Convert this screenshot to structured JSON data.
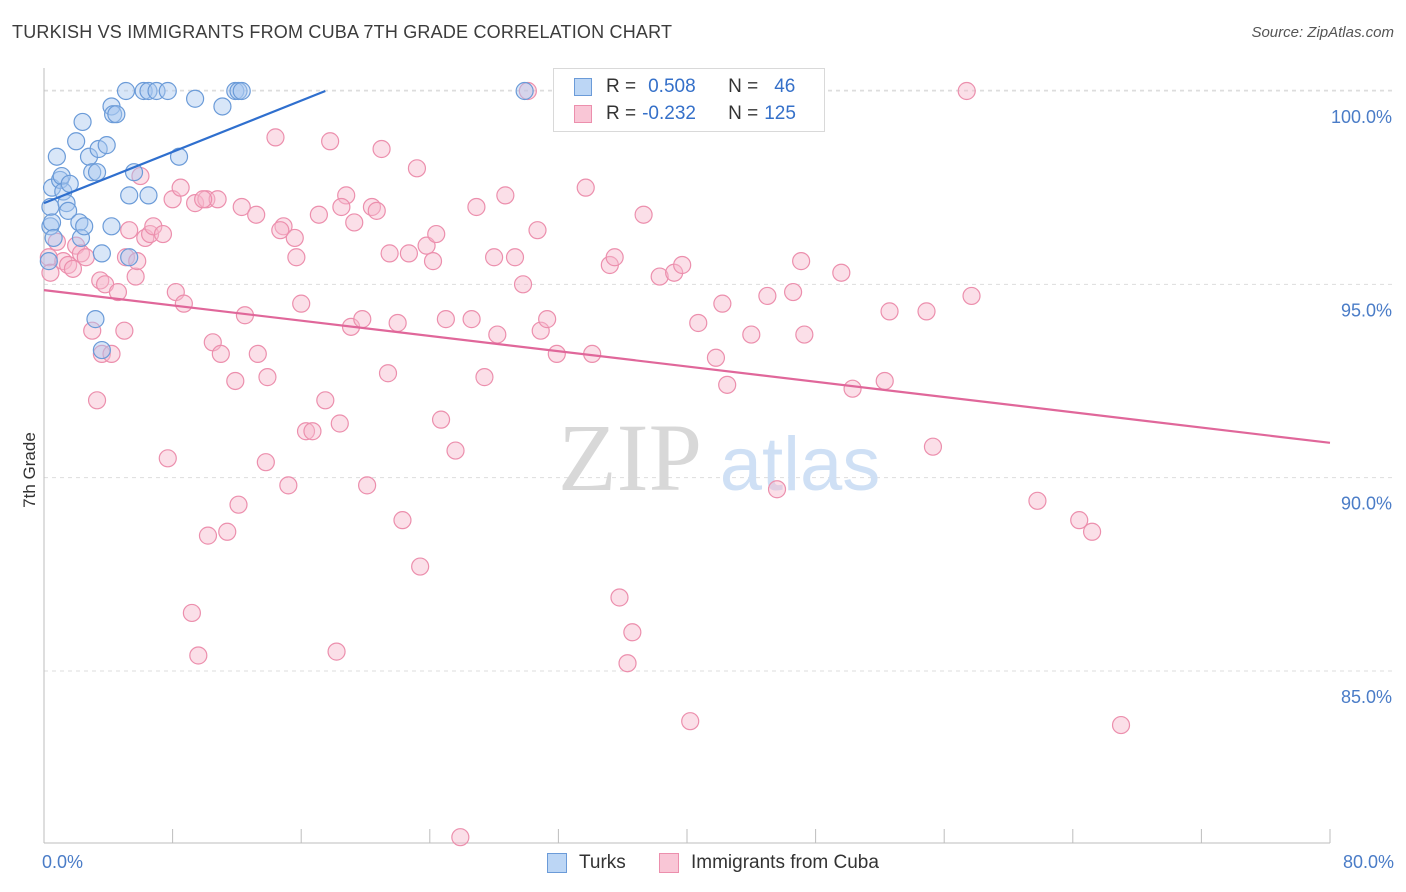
{
  "title": "TURKISH VS IMMIGRANTS FROM CUBA 7TH GRADE CORRELATION CHART",
  "source": "Source: ZipAtlas.com",
  "watermark": {
    "zip": "ZIP",
    "atlas": "atlas"
  },
  "legend": {
    "rows": [
      {
        "r_label": "R =",
        "r_value": "0.508",
        "n_label": "N =",
        "n_value": "46"
      },
      {
        "r_label": "R =",
        "r_value": "-0.232",
        "n_label": "N =",
        "n_value": "125"
      }
    ]
  },
  "bottom_legend": [
    "Turks",
    "Immigrants from Cuba"
  ],
  "x_tick_labels": {
    "left": "0.0%",
    "right": "80.0%"
  },
  "colors": {
    "turks_fill": "#a9c8f0",
    "turks_stroke": "#6b9bd8",
    "turks_line": "#2f6fce",
    "cuba_fill": "#f7b9cc",
    "cuba_stroke": "#ec8fad",
    "cuba_line": "#e0679a",
    "tick_label": "#4a7cc7",
    "grid": "#dddddd"
  },
  "chart_data": {
    "type": "scatter",
    "title": "TURKISH VS IMMIGRANTS FROM CUBA 7TH GRADE CORRELATION CHART",
    "xlabel": "",
    "ylabel": "7th Grade",
    "xlim": [
      0,
      80
    ],
    "ylim": [
      80.55,
      100.75
    ],
    "y_ticks": [
      {
        "value": 85,
        "label": "85.0%"
      },
      {
        "value": 90,
        "label": "90.0%"
      },
      {
        "value": 95,
        "label": "95.0%"
      },
      {
        "value": 100,
        "label": "100.0%"
      }
    ],
    "x_tick_values": [
      0,
      8,
      16,
      24,
      32,
      40,
      48,
      56,
      64,
      72,
      80
    ],
    "series": [
      {
        "name": "Turks",
        "r": 0.508,
        "n": 46,
        "trend": {
          "x0": 0,
          "y0": 97.1,
          "x1": 17.5,
          "y1": 100.0
        },
        "points": [
          [
            0.4,
            96.5
          ],
          [
            0.4,
            97.0
          ],
          [
            0.5,
            97.5
          ],
          [
            0.5,
            96.6
          ],
          [
            0.8,
            98.3
          ],
          [
            1.0,
            97.7
          ],
          [
            1.1,
            97.8
          ],
          [
            1.2,
            97.4
          ],
          [
            1.4,
            97.1
          ],
          [
            1.5,
            96.9
          ],
          [
            1.6,
            97.6
          ],
          [
            2.0,
            98.7
          ],
          [
            2.2,
            96.6
          ],
          [
            2.3,
            96.2
          ],
          [
            2.4,
            99.2
          ],
          [
            2.5,
            96.5
          ],
          [
            2.8,
            98.3
          ],
          [
            3.0,
            97.9
          ],
          [
            3.2,
            94.1
          ],
          [
            3.3,
            97.9
          ],
          [
            3.4,
            98.5
          ],
          [
            3.6,
            95.8
          ],
          [
            3.6,
            93.3
          ],
          [
            3.9,
            98.6
          ],
          [
            4.2,
            99.6
          ],
          [
            4.2,
            96.5
          ],
          [
            4.3,
            99.4
          ],
          [
            4.5,
            99.4
          ],
          [
            5.1,
            100.0
          ],
          [
            5.3,
            97.3
          ],
          [
            5.3,
            95.7
          ],
          [
            5.6,
            97.9
          ],
          [
            6.2,
            100.0
          ],
          [
            6.5,
            97.3
          ],
          [
            6.5,
            100.0
          ],
          [
            7.0,
            100.0
          ],
          [
            7.7,
            100.0
          ],
          [
            8.4,
            98.3
          ],
          [
            9.4,
            99.8
          ],
          [
            11.1,
            99.6
          ],
          [
            11.9,
            100.0
          ],
          [
            12.1,
            100.0
          ],
          [
            12.3,
            100.0
          ],
          [
            29.9,
            100.0
          ],
          [
            0.3,
            95.6
          ],
          [
            0.6,
            96.2
          ]
        ]
      },
      {
        "name": "Immigrants from Cuba",
        "r": -0.232,
        "n": 125,
        "trend": {
          "x0": 0,
          "y0": 94.85,
          "x1": 80,
          "y1": 90.9
        },
        "points": [
          [
            0.3,
            95.7
          ],
          [
            0.4,
            95.3
          ],
          [
            0.8,
            96.1
          ],
          [
            1.2,
            95.6
          ],
          [
            1.5,
            95.5
          ],
          [
            1.8,
            95.4
          ],
          [
            2.0,
            96.0
          ],
          [
            2.3,
            95.8
          ],
          [
            2.6,
            95.7
          ],
          [
            3.0,
            93.8
          ],
          [
            3.3,
            92.0
          ],
          [
            3.5,
            95.1
          ],
          [
            3.6,
            93.2
          ],
          [
            3.8,
            95.0
          ],
          [
            4.2,
            93.2
          ],
          [
            4.6,
            94.8
          ],
          [
            5.1,
            95.7
          ],
          [
            5.0,
            93.8
          ],
          [
            5.3,
            96.4
          ],
          [
            5.7,
            95.2
          ],
          [
            6.0,
            97.8
          ],
          [
            6.3,
            96.2
          ],
          [
            6.6,
            96.3
          ],
          [
            6.8,
            96.5
          ],
          [
            7.4,
            96.3
          ],
          [
            7.7,
            90.5
          ],
          [
            8.0,
            97.2
          ],
          [
            8.2,
            94.8
          ],
          [
            8.5,
            97.5
          ],
          [
            8.7,
            94.5
          ],
          [
            9.2,
            86.5
          ],
          [
            9.4,
            97.1
          ],
          [
            9.6,
            85.4
          ],
          [
            10.1,
            97.2
          ],
          [
            10.2,
            88.5
          ],
          [
            10.5,
            93.5
          ],
          [
            10.8,
            97.2
          ],
          [
            11.0,
            93.2
          ],
          [
            11.4,
            88.6
          ],
          [
            11.9,
            92.5
          ],
          [
            12.1,
            89.3
          ],
          [
            12.3,
            97.0
          ],
          [
            12.5,
            94.2
          ],
          [
            13.2,
            96.8
          ],
          [
            13.3,
            93.2
          ],
          [
            13.8,
            90.4
          ],
          [
            13.9,
            92.6
          ],
          [
            14.4,
            98.8
          ],
          [
            14.9,
            96.5
          ],
          [
            15.2,
            89.8
          ],
          [
            15.6,
            96.2
          ],
          [
            15.7,
            95.7
          ],
          [
            16.0,
            94.5
          ],
          [
            16.3,
            91.2
          ],
          [
            16.7,
            91.2
          ],
          [
            17.1,
            96.8
          ],
          [
            17.5,
            92.0
          ],
          [
            17.8,
            98.7
          ],
          [
            18.2,
            85.5
          ],
          [
            18.4,
            91.4
          ],
          [
            18.8,
            97.3
          ],
          [
            19.1,
            93.9
          ],
          [
            19.3,
            96.6
          ],
          [
            19.8,
            94.1
          ],
          [
            20.1,
            89.8
          ],
          [
            20.4,
            97.0
          ],
          [
            20.7,
            96.9
          ],
          [
            21.0,
            98.5
          ],
          [
            21.4,
            92.7
          ],
          [
            21.5,
            95.8
          ],
          [
            22.3,
            88.9
          ],
          [
            22.7,
            95.8
          ],
          [
            23.2,
            98.0
          ],
          [
            23.4,
            87.7
          ],
          [
            23.8,
            96.0
          ],
          [
            24.2,
            95.6
          ],
          [
            24.4,
            96.3
          ],
          [
            24.7,
            91.5
          ],
          [
            25.0,
            94.1
          ],
          [
            25.6,
            90.7
          ],
          [
            25.9,
            80.7
          ],
          [
            26.6,
            94.1
          ],
          [
            26.9,
            97.0
          ],
          [
            27.4,
            92.6
          ],
          [
            28.0,
            95.7
          ],
          [
            28.2,
            93.7
          ],
          [
            29.3,
            95.7
          ],
          [
            29.8,
            95.0
          ],
          [
            30.1,
            100.0
          ],
          [
            30.7,
            96.4
          ],
          [
            30.9,
            93.8
          ],
          [
            31.3,
            94.1
          ],
          [
            31.9,
            93.2
          ],
          [
            33.7,
            97.5
          ],
          [
            34.1,
            93.2
          ],
          [
            35.2,
            95.5
          ],
          [
            35.5,
            95.7
          ],
          [
            35.8,
            86.9
          ],
          [
            36.3,
            85.2
          ],
          [
            36.6,
            86.0
          ],
          [
            37.3,
            96.8
          ],
          [
            38.3,
            95.2
          ],
          [
            39.2,
            95.3
          ],
          [
            39.7,
            95.5
          ],
          [
            40.2,
            83.7
          ],
          [
            40.7,
            94.0
          ],
          [
            41.8,
            93.1
          ],
          [
            42.2,
            94.5
          ],
          [
            42.5,
            92.4
          ],
          [
            44.0,
            93.7
          ],
          [
            45.0,
            94.7
          ],
          [
            45.6,
            89.7
          ],
          [
            46.6,
            94.8
          ],
          [
            47.1,
            95.6
          ],
          [
            47.3,
            93.7
          ],
          [
            49.6,
            95.3
          ],
          [
            50.3,
            92.3
          ],
          [
            52.3,
            92.5
          ],
          [
            52.6,
            94.3
          ],
          [
            54.9,
            94.3
          ],
          [
            55.3,
            90.8
          ],
          [
            57.4,
            100.0
          ],
          [
            57.7,
            94.7
          ],
          [
            61.8,
            89.4
          ],
          [
            64.4,
            88.9
          ],
          [
            65.2,
            88.6
          ],
          [
            67.0,
            83.6
          ],
          [
            5.8,
            95.6
          ],
          [
            9.9,
            97.2
          ],
          [
            22.0,
            94.0
          ],
          [
            14.7,
            96.4
          ],
          [
            28.7,
            97.3
          ],
          [
            18.5,
            97.0
          ]
        ]
      }
    ]
  }
}
